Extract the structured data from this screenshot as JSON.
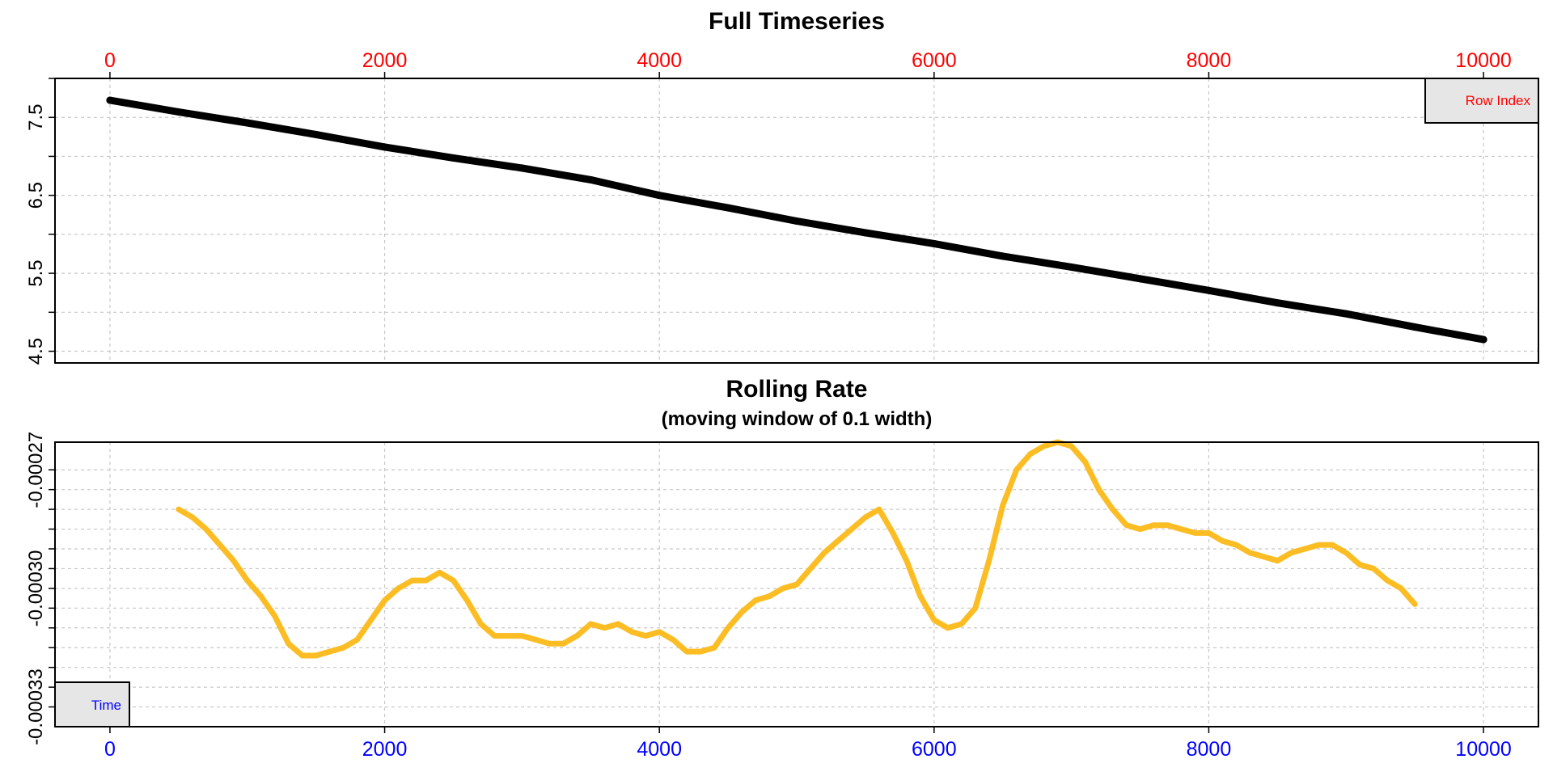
{
  "colors": {
    "top_axis": "#ff0000",
    "bottom_axis": "#0000ff",
    "series_top": "#000000",
    "series_bottom": "#fbbd23",
    "grid": "#c8c8c8",
    "label_box_fill": "#e6e6e6"
  },
  "chart_data": [
    {
      "type": "scatter",
      "title": "Full Timeseries",
      "subtitle": "",
      "xlabel": "",
      "ylabel": "",
      "xlim": [
        -400,
        10400
      ],
      "ylim": [
        4.35,
        8.0
      ],
      "x_ticks": [
        0,
        2000,
        4000,
        6000,
        8000,
        10000
      ],
      "x_tick_labels": [
        "0",
        "2000",
        "4000",
        "6000",
        "8000",
        "10000"
      ],
      "x_axis_position": "top",
      "y_ticks_labeled": [
        4.5,
        5.5,
        6.5,
        7.5
      ],
      "y_tick_labels": [
        "4.5",
        "5.5",
        "6.5",
        "7.5"
      ],
      "y_ticks_minor": [
        5.0,
        6.0,
        7.0,
        8.0
      ],
      "grid": true,
      "corner_label": "Row Index",
      "corner_label_position": "top-right",
      "series": [
        {
          "x": [
            0,
            500,
            1000,
            1500,
            2000,
            2500,
            3000,
            3500,
            4000,
            4500,
            5000,
            5500,
            6000,
            6500,
            7000,
            7500,
            8000,
            8500,
            9000,
            9500,
            10000
          ],
          "y": [
            7.72,
            7.57,
            7.43,
            7.28,
            7.12,
            6.98,
            6.85,
            6.7,
            6.5,
            6.34,
            6.17,
            6.02,
            5.88,
            5.72,
            5.58,
            5.43,
            5.28,
            5.12,
            4.98,
            4.81,
            4.65
          ]
        }
      ]
    },
    {
      "type": "line",
      "title": "Rolling Rate",
      "subtitle": "(moving window of 0.1 width)",
      "xlabel": "",
      "ylabel": "",
      "xlim": [
        -400,
        10400
      ],
      "ylim": [
        -0.000335,
        -0.000263
      ],
      "x_ticks": [
        0,
        2000,
        4000,
        6000,
        8000,
        10000
      ],
      "x_tick_labels": [
        "0",
        "2000",
        "4000",
        "6000",
        "8000",
        "10000"
      ],
      "x_axis_position": "bottom",
      "y_ticks_labeled": [
        -0.00033,
        -0.0003,
        -0.00027
      ],
      "y_tick_labels": [
        "-0.00033",
        "-0.00030",
        "-0.00027"
      ],
      "y_ticks_minor": [
        -0.000325,
        -0.00032,
        -0.000315,
        -0.00031,
        -0.000305,
        -0.000295,
        -0.00029,
        -0.000285,
        -0.00028,
        -0.000275
      ],
      "grid": true,
      "corner_label": "Time",
      "corner_label_position": "bottom-left",
      "series": [
        {
          "x": [
            500,
            600,
            700,
            800,
            900,
            1000,
            1100,
            1200,
            1300,
            1400,
            1500,
            1600,
            1700,
            1800,
            1900,
            2000,
            2100,
            2200,
            2300,
            2400,
            2500,
            2600,
            2700,
            2800,
            2900,
            3000,
            3100,
            3200,
            3300,
            3400,
            3500,
            3600,
            3700,
            3800,
            3900,
            4000,
            4100,
            4200,
            4300,
            4400,
            4500,
            4600,
            4700,
            4800,
            4900,
            5000,
            5100,
            5200,
            5300,
            5400,
            5500,
            5600,
            5700,
            5800,
            5900,
            6000,
            6100,
            6200,
            6300,
            6400,
            6500,
            6600,
            6700,
            6800,
            6900,
            7000,
            7100,
            7200,
            7300,
            7400,
            7500,
            7600,
            7700,
            7800,
            7900,
            8000,
            8100,
            8200,
            8300,
            8400,
            8500,
            8600,
            8700,
            8800,
            8900,
            9000,
            9100,
            9200,
            9300,
            9400,
            9500
          ],
          "y": [
            -0.00028,
            -0.000282,
            -0.000285,
            -0.000289,
            -0.000293,
            -0.000298,
            -0.000302,
            -0.000307,
            -0.000314,
            -0.000317,
            -0.000317,
            -0.000316,
            -0.000315,
            -0.000313,
            -0.000308,
            -0.000303,
            -0.0003,
            -0.000298,
            -0.000298,
            -0.000296,
            -0.000298,
            -0.000303,
            -0.000309,
            -0.000312,
            -0.000312,
            -0.000312,
            -0.000313,
            -0.000314,
            -0.000314,
            -0.000312,
            -0.000309,
            -0.00031,
            -0.000309,
            -0.000311,
            -0.000312,
            -0.000311,
            -0.000313,
            -0.000316,
            -0.000316,
            -0.000315,
            -0.00031,
            -0.000306,
            -0.000303,
            -0.000302,
            -0.0003,
            -0.000299,
            -0.000295,
            -0.000291,
            -0.000288,
            -0.000285,
            -0.000282,
            -0.00028,
            -0.000286,
            -0.000293,
            -0.000302,
            -0.000308,
            -0.00031,
            -0.000309,
            -0.000305,
            -0.000293,
            -0.000279,
            -0.00027,
            -0.000266,
            -0.000264,
            -0.000263,
            -0.000264,
            -0.000268,
            -0.000275,
            -0.00028,
            -0.000284,
            -0.000285,
            -0.000284,
            -0.000284,
            -0.000285,
            -0.000286,
            -0.000286,
            -0.000288,
            -0.000289,
            -0.000291,
            -0.000292,
            -0.000293,
            -0.000291,
            -0.00029,
            -0.000289,
            -0.000289,
            -0.000291,
            -0.000294,
            -0.000295,
            -0.000298,
            -0.0003,
            -0.000304
          ]
        }
      ]
    }
  ]
}
